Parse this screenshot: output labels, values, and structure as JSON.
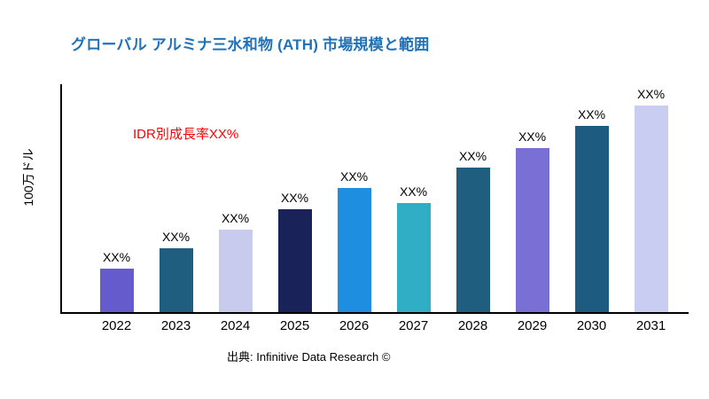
{
  "title": "グローバル アルミナ三水和物 (ATH) 市場規模と範囲",
  "annotation": "IDR別成長率XX%",
  "ylabel": "100万ドル",
  "source": "出典: Infinitive Data Research ©",
  "colors": {
    "title": "#1F72B8",
    "annotation": "#FF0000",
    "axis": "#000000",
    "background": "#FFFFFF"
  },
  "chart_data": {
    "type": "bar",
    "title": "グローバル アルミナ三水和物 (ATH) 市場規模と範囲",
    "xlabel": "",
    "ylabel": "100万ドル",
    "categories": [
      "2022",
      "2023",
      "2024",
      "2025",
      "2026",
      "2027",
      "2028",
      "2029",
      "2030",
      "2031"
    ],
    "values": [
      49,
      71,
      92,
      115,
      139,
      122,
      162,
      184,
      208,
      231
    ],
    "bar_labels": [
      "XX%",
      "XX%",
      "XX%",
      "XX%",
      "XX%",
      "XX%",
      "XX%",
      "XX%",
      "XX%",
      "XX%"
    ],
    "bar_colors": [
      "#655BCD",
      "#205E80",
      "#C8CBEE",
      "#1A2359",
      "#1D8EE0",
      "#2FAEC5",
      "#205E80",
      "#7A6FD4",
      "#1D5C80",
      "#C9CDF2"
    ],
    "ylim": [
      0,
      255
    ],
    "grid": false,
    "legend": false,
    "annotation": "IDR別成長率XX%"
  }
}
